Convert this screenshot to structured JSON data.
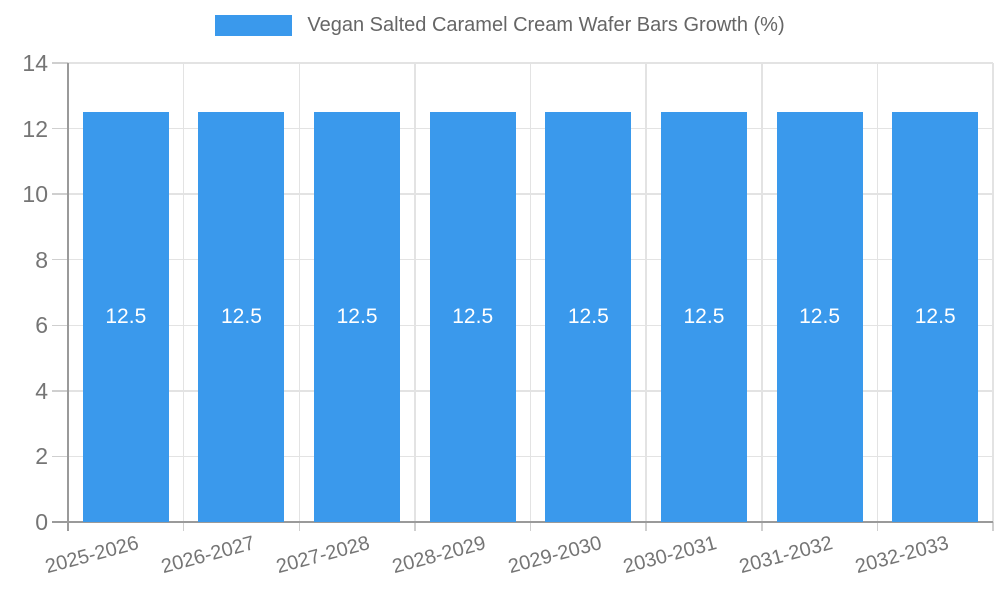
{
  "legend": {
    "label": "Vegan Salted Caramel Cream Wafer Bars Growth (%)",
    "swatch_color": "#3a99ec"
  },
  "chart_data": {
    "type": "bar",
    "title": "Vegan Salted Caramel Cream Wafer Bars Growth (%)",
    "categories": [
      "2025-2026",
      "2026-2027",
      "2027-2028",
      "2028-2029",
      "2029-2030",
      "2030-2031",
      "2031-2032",
      "2032-2033"
    ],
    "values": [
      12.5,
      12.5,
      12.5,
      12.5,
      12.5,
      12.5,
      12.5,
      12.5
    ],
    "bar_labels": [
      "12.5",
      "12.5",
      "12.5",
      "12.5",
      "12.5",
      "12.5",
      "12.5",
      "12.5"
    ],
    "xlabel": "",
    "ylabel": "",
    "ylim": [
      0,
      14
    ],
    "yticks": [
      0,
      2,
      4,
      6,
      8,
      10,
      12,
      14
    ],
    "grid": true,
    "legend_position": "top",
    "x_tick_rotation_deg": -15,
    "bar_color": "#3a99ec",
    "bar_label_color": "#ffffff"
  },
  "colors": {
    "background": "#ffffff",
    "grid": "#e3e3e3",
    "axis": "#9a9a9a",
    "tick_text": "#757575",
    "title_text": "#666666"
  }
}
